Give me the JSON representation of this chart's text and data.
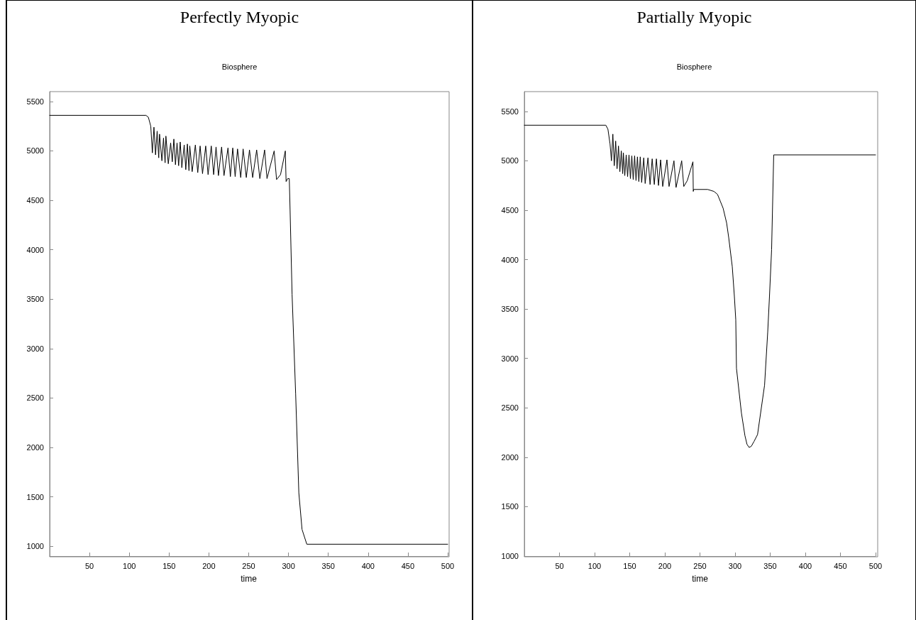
{
  "chart_data": [
    {
      "type": "line",
      "title": "Perfectly Myopic",
      "subtitle": "Biosphere",
      "xlabel": "time",
      "xlim": [
        0,
        500
      ],
      "xticks": [
        50,
        100,
        150,
        200,
        250,
        300,
        350,
        400,
        450,
        500
      ],
      "ylim": [
        900,
        5600
      ],
      "yticks": [
        1000,
        1500,
        2000,
        2500,
        3000,
        3500,
        4000,
        4500,
        5000,
        5500
      ],
      "marker": "none",
      "line_style": "solid",
      "series": [
        {
          "color": "#000000",
          "x": [
            0,
            121,
            124,
            127,
            129,
            131,
            133,
            135,
            137,
            138,
            141,
            143,
            145,
            146,
            149,
            152,
            154,
            156,
            158,
            160,
            162,
            164,
            166,
            169,
            171,
            173,
            175,
            176,
            179,
            183,
            186,
            189,
            192,
            196,
            199,
            203,
            206,
            209,
            212,
            216,
            219,
            224,
            227,
            230,
            233,
            236,
            240,
            243,
            247,
            251,
            255,
            260,
            264,
            270,
            273,
            282,
            285,
            290,
            296,
            297,
            299,
            301,
            302,
            304.5,
            309,
            313,
            317,
            323,
            500
          ],
          "values": [
            5360,
            5360,
            5340,
            5250,
            4980,
            5240,
            4960,
            5200,
            4930,
            5170,
            4900,
            5130,
            4880,
            5150,
            4870,
            5080,
            4890,
            5120,
            4860,
            5080,
            4850,
            5090,
            4830,
            5060,
            4810,
            5070,
            4800,
            5050,
            4790,
            5060,
            4780,
            5050,
            4770,
            5050,
            4760,
            5050,
            4760,
            5040,
            4750,
            5040,
            4750,
            5030,
            4740,
            5030,
            4740,
            5020,
            4730,
            5020,
            4730,
            5010,
            4730,
            5010,
            4720,
            5010,
            4720,
            5000,
            4710,
            4760,
            5000,
            4690,
            4720,
            4720,
            4400,
            3550,
            2540,
            1540,
            1170,
            1020,
            1020
          ]
        }
      ]
    },
    {
      "type": "line",
      "title": "Partially Myopic",
      "subtitle": "Biosphere",
      "xlabel": "time",
      "xlim": [
        0,
        500
      ],
      "xticks": [
        50,
        100,
        150,
        200,
        250,
        300,
        350,
        400,
        450,
        500
      ],
      "ylim": [
        1000,
        5700
      ],
      "yticks": [
        1000,
        1500,
        2000,
        2500,
        3000,
        3500,
        4000,
        4500,
        5000,
        5500
      ],
      "marker": "none",
      "line_style": "solid",
      "series": [
        {
          "color": "#000000",
          "x": [
            0,
            116,
            119,
            122,
            124,
            126,
            128,
            130,
            132,
            134,
            136,
            138,
            140,
            141,
            143,
            145,
            147,
            149,
            151,
            153,
            155,
            157,
            159,
            161,
            163,
            165,
            167,
            170,
            172,
            176,
            179,
            182,
            185,
            188,
            191,
            194,
            197,
            203,
            206,
            213,
            216,
            224,
            227,
            232,
            240,
            240.5,
            241,
            261,
            270,
            275,
            283,
            288,
            291,
            296,
            299,
            301,
            302,
            309,
            314,
            317,
            320,
            323,
            327,
            332,
            337,
            342,
            346.5,
            349,
            352,
            355,
            500
          ],
          "values": [
            5360,
            5360,
            5320,
            5170,
            5000,
            5270,
            4950,
            5200,
            4920,
            5150,
            4890,
            5100,
            4870,
            5080,
            4850,
            5060,
            4840,
            5060,
            4820,
            5050,
            4810,
            5050,
            4800,
            5040,
            4790,
            5040,
            4780,
            5030,
            4770,
            5030,
            4760,
            5020,
            4760,
            5020,
            4750,
            5010,
            4740,
            5010,
            4740,
            5000,
            4730,
            5000,
            4740,
            4800,
            4990,
            4690,
            4710,
            4710,
            4690,
            4660,
            4520,
            4370,
            4220,
            3930,
            3630,
            3390,
            2900,
            2450,
            2220,
            2130,
            2100,
            2110,
            2160,
            2230,
            2480,
            2730,
            3270,
            3630,
            4100,
            5060,
            5060
          ]
        }
      ]
    }
  ]
}
